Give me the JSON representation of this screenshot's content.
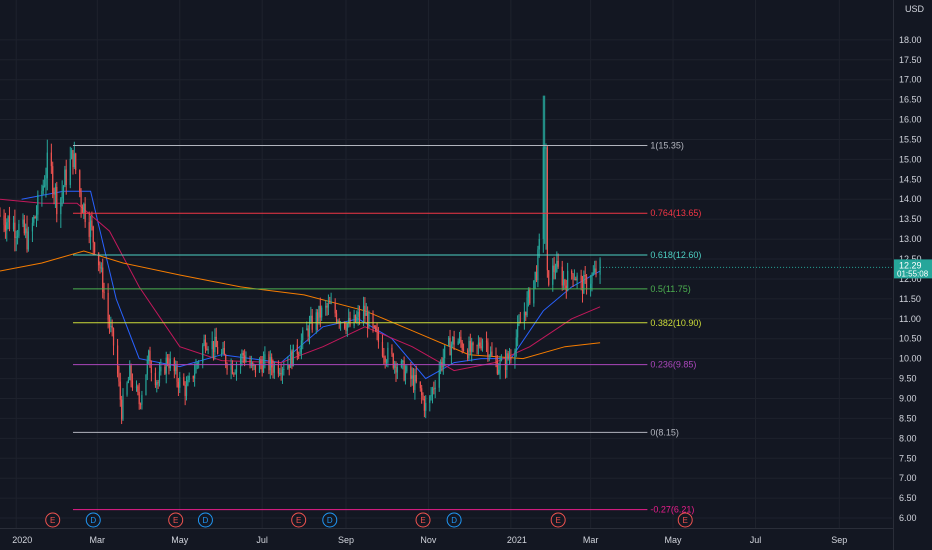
{
  "chart_data": {
    "type": "candlestick",
    "currency": "USD",
    "ylim": [
      5.75,
      19.0
    ],
    "y_ticks": [
      "18.00",
      "17.50",
      "17.00",
      "16.50",
      "16.00",
      "15.50",
      "15.00",
      "14.50",
      "14.00",
      "13.50",
      "13.00",
      "12.50",
      "12.00",
      "11.50",
      "11.00",
      "10.50",
      "10.00",
      "9.50",
      "9.00",
      "8.50",
      "8.00",
      "7.50",
      "7.00",
      "6.50",
      "6.00"
    ],
    "x_ticks": [
      {
        "label": "2020",
        "x": "2020-01-01"
      },
      {
        "label": "Mar",
        "x": "2020-03-01"
      },
      {
        "label": "May",
        "x": "2020-05-01"
      },
      {
        "label": "Jul",
        "x": "2020-07-01"
      },
      {
        "label": "Sep",
        "x": "2020-09-01"
      },
      {
        "label": "Nov",
        "x": "2020-11-01"
      },
      {
        "label": "2021",
        "x": "2021-01-01"
      },
      {
        "label": "Mar",
        "x": "2021-03-01"
      },
      {
        "label": "May",
        "x": "2021-05-01"
      },
      {
        "label": "Jul",
        "x": "2021-07-01"
      },
      {
        "label": "Sep",
        "x": "2021-09-01"
      }
    ],
    "x_range": [
      "2019-12-20",
      "2021-10-10"
    ],
    "last_price": {
      "label": "12.29",
      "value": 12.29,
      "countdown": "01:55:08",
      "color": "#26a69a"
    },
    "fib_levels": [
      {
        "label": "1(15.35)",
        "value": 15.35,
        "color": "#b2b5be"
      },
      {
        "label": "0.764(13.65)",
        "value": 13.65,
        "color": "#f23645"
      },
      {
        "label": "0.618(12.60)",
        "value": 12.6,
        "color": "#4dd0c4"
      },
      {
        "label": "0.5(11.75)",
        "value": 11.75,
        "color": "#4caf50"
      },
      {
        "label": "0.382(10.90)",
        "value": 10.9,
        "color": "#cddc39"
      },
      {
        "label": "0.236(9.85)",
        "value": 9.85,
        "color": "#ab47bc"
      },
      {
        "label": "0(8.15)",
        "value": 8.15,
        "color": "#b2b5be"
      },
      {
        "label": "-0.27(6.21)",
        "value": 6.21,
        "color": "#e91e8c"
      }
    ],
    "fib_start": "2020-02-12",
    "fib_end": "2021-04-12",
    "events": [
      {
        "type": "E",
        "x": "2020-01-28"
      },
      {
        "type": "D",
        "x": "2020-02-27"
      },
      {
        "type": "E",
        "x": "2020-04-28"
      },
      {
        "type": "D",
        "x": "2020-05-20"
      },
      {
        "type": "E",
        "x": "2020-07-28"
      },
      {
        "type": "D",
        "x": "2020-08-20"
      },
      {
        "type": "E",
        "x": "2020-10-28"
      },
      {
        "type": "D",
        "x": "2020-11-20"
      },
      {
        "type": "E",
        "x": "2021-02-05"
      },
      {
        "type": "E",
        "x": "2021-05-10"
      }
    ],
    "price_path": [
      [
        "2019-12-20",
        13.6
      ],
      [
        "2020-01-02",
        13.3
      ],
      [
        "2020-01-10",
        13.0
      ],
      [
        "2020-01-18",
        13.9
      ],
      [
        "2020-01-25",
        15.0
      ],
      [
        "2020-02-01",
        13.8
      ],
      [
        "2020-02-07",
        14.6
      ],
      [
        "2020-02-12",
        15.1
      ],
      [
        "2020-02-18",
        14.0
      ],
      [
        "2020-02-25",
        13.3
      ],
      [
        "2020-03-03",
        12.3
      ],
      [
        "2020-03-09",
        11.0
      ],
      [
        "2020-03-14",
        10.2
      ],
      [
        "2020-03-19",
        8.7
      ],
      [
        "2020-03-25",
        9.6
      ],
      [
        "2020-04-01",
        8.9
      ],
      [
        "2020-04-08",
        10.0
      ],
      [
        "2020-04-15",
        9.4
      ],
      [
        "2020-04-22",
        10.0
      ],
      [
        "2020-04-29",
        9.5
      ],
      [
        "2020-05-06",
        9.2
      ],
      [
        "2020-05-13",
        9.8
      ],
      [
        "2020-05-20",
        10.5
      ],
      [
        "2020-05-27",
        10.3
      ],
      [
        "2020-06-03",
        10.0
      ],
      [
        "2020-06-10",
        9.8
      ],
      [
        "2020-06-17",
        10.1
      ],
      [
        "2020-06-24",
        9.7
      ],
      [
        "2020-07-01",
        9.9
      ],
      [
        "2020-07-10",
        9.8
      ],
      [
        "2020-07-20",
        9.9
      ],
      [
        "2020-07-28",
        10.3
      ],
      [
        "2020-08-05",
        10.8
      ],
      [
        "2020-08-12",
        11.1
      ],
      [
        "2020-08-20",
        11.3
      ],
      [
        "2020-08-28",
        11.0
      ],
      [
        "2020-09-05",
        10.8
      ],
      [
        "2020-09-14",
        11.2
      ],
      [
        "2020-09-22",
        10.6
      ],
      [
        "2020-10-01",
        10.1
      ],
      [
        "2020-10-08",
        9.9
      ],
      [
        "2020-10-16",
        9.6
      ],
      [
        "2020-10-24",
        9.3
      ],
      [
        "2020-10-31",
        8.7
      ],
      [
        "2020-11-07",
        9.6
      ],
      [
        "2020-11-14",
        10.2
      ],
      [
        "2020-11-21",
        10.5
      ],
      [
        "2020-11-28",
        10.3
      ],
      [
        "2020-12-05",
        10.1
      ],
      [
        "2020-12-12",
        10.6
      ],
      [
        "2020-12-19",
        9.9
      ],
      [
        "2020-12-26",
        9.8
      ],
      [
        "2021-01-02",
        10.2
      ],
      [
        "2021-01-09",
        11.0
      ],
      [
        "2021-01-15",
        11.6
      ],
      [
        "2021-01-20",
        12.2
      ],
      [
        "2021-01-25",
        13.7
      ],
      [
        "2021-01-28",
        12.0
      ],
      [
        "2021-02-03",
        12.3
      ],
      [
        "2021-02-10",
        11.9
      ],
      [
        "2021-02-16",
        12.2
      ],
      [
        "2021-02-22",
        11.8
      ],
      [
        "2021-03-01",
        12.0
      ],
      [
        "2021-03-08",
        12.29
      ]
    ],
    "moving_averages": [
      {
        "name": "",
        "color": "#2962ff",
        "points": [
          [
            "2020-01-05",
            14.0
          ],
          [
            "2020-02-05",
            14.2
          ],
          [
            "2020-02-25",
            14.2
          ],
          [
            "2020-03-15",
            11.5
          ],
          [
            "2020-04-01",
            10.0
          ],
          [
            "2020-05-01",
            9.8
          ],
          [
            "2020-06-01",
            10.1
          ],
          [
            "2020-07-15",
            9.9
          ],
          [
            "2020-08-15",
            10.8
          ],
          [
            "2020-09-10",
            11.0
          ],
          [
            "2020-10-05",
            10.5
          ],
          [
            "2020-10-30",
            9.5
          ],
          [
            "2020-11-20",
            9.9
          ],
          [
            "2020-12-10",
            10.0
          ],
          [
            "2021-01-01",
            10.0
          ],
          [
            "2021-01-25",
            11.2
          ],
          [
            "2021-02-15",
            11.8
          ],
          [
            "2021-03-08",
            12.2
          ]
        ]
      },
      {
        "name": "",
        "color": "#c2185b",
        "points": [
          [
            "2019-12-20",
            14.0
          ],
          [
            "2020-01-20",
            13.9
          ],
          [
            "2020-02-15",
            13.9
          ],
          [
            "2020-03-10",
            13.2
          ],
          [
            "2020-04-01",
            11.8
          ],
          [
            "2020-05-01",
            10.3
          ],
          [
            "2020-06-01",
            9.95
          ],
          [
            "2020-07-15",
            9.9
          ],
          [
            "2020-08-15",
            10.3
          ],
          [
            "2020-09-15",
            10.8
          ],
          [
            "2020-10-20",
            10.3
          ],
          [
            "2020-11-20",
            9.7
          ],
          [
            "2020-12-20",
            9.9
          ],
          [
            "2021-01-15",
            10.3
          ],
          [
            "2021-02-15",
            11.0
          ],
          [
            "2021-03-08",
            11.3
          ]
        ]
      },
      {
        "name": "",
        "color": "#f57c00",
        "points": [
          [
            "2019-12-20",
            12.2
          ],
          [
            "2020-01-20",
            12.4
          ],
          [
            "2020-02-20",
            12.7
          ],
          [
            "2020-03-20",
            12.4
          ],
          [
            "2020-05-01",
            12.1
          ],
          [
            "2020-06-15",
            11.8
          ],
          [
            "2020-08-01",
            11.6
          ],
          [
            "2020-09-15",
            11.2
          ],
          [
            "2020-10-20",
            10.7
          ],
          [
            "2020-12-01",
            10.1
          ],
          [
            "2021-01-10",
            10.0
          ],
          [
            "2021-02-10",
            10.3
          ],
          [
            "2021-03-08",
            10.4
          ]
        ]
      }
    ]
  }
}
